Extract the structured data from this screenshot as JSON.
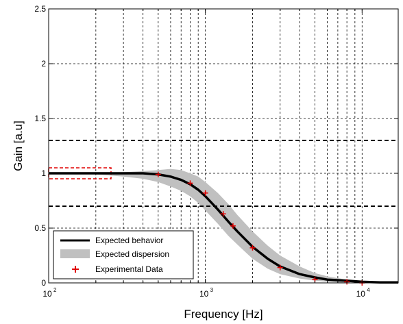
{
  "chart_data": {
    "type": "line",
    "xlabel": "Frequency [Hz]",
    "ylabel": "Gain [a.u]",
    "xscale": "log",
    "xlim": [
      100,
      17000
    ],
    "ylim": [
      0,
      2.5
    ],
    "grid": true,
    "x_ticks": [
      {
        "value": 100,
        "base": "10",
        "exp": "2"
      },
      {
        "value": 1000,
        "base": "10",
        "exp": "3"
      },
      {
        "value": 10000,
        "base": "10",
        "exp": "4"
      }
    ],
    "y_ticks": [
      {
        "value": 0,
        "label": "0"
      },
      {
        "value": 0.5,
        "label": "0.5"
      },
      {
        "value": 1,
        "label": "1"
      },
      {
        "value": 1.5,
        "label": "1.5"
      },
      {
        "value": 2,
        "label": "2"
      },
      {
        "value": 2.5,
        "label": "2.5"
      }
    ],
    "thresholds": [
      1.3,
      0.7
    ],
    "reference_box": {
      "x": [
        100,
        250
      ],
      "y": [
        0.95,
        1.05
      ]
    },
    "colors": {
      "expected_behavior": "#000000",
      "expected_dispersion": "#c0c0c0",
      "experimental_data": "#e00000",
      "reference_box": "#e00000",
      "threshold": "#000000",
      "grid": "#000000"
    },
    "legend": {
      "placement": "bottom-left",
      "entries": [
        "Expected behavior",
        "Expected dispersion",
        "Experimental Data"
      ]
    },
    "series": [
      {
        "name": "Expected behavior",
        "kind": "line",
        "x": [
          100,
          150,
          200,
          300,
          400,
          500,
          600,
          700,
          800,
          900,
          1000,
          1200,
          1400,
          1600,
          2000,
          2500,
          3000,
          4000,
          5000,
          6000,
          8000,
          10000,
          13000,
          17000
        ],
        "y": [
          1.0,
          1.0,
          1.0,
          1.0,
          1.0,
          0.99,
          0.97,
          0.94,
          0.9,
          0.85,
          0.79,
          0.67,
          0.56,
          0.47,
          0.33,
          0.22,
          0.15,
          0.08,
          0.05,
          0.03,
          0.02,
          0.01,
          0.005,
          0.005
        ]
      },
      {
        "name": "Expected dispersion",
        "kind": "band",
        "x": [
          200,
          300,
          400,
          500,
          600,
          700,
          800,
          900,
          1000,
          1200,
          1400,
          1600,
          2000,
          2500,
          3000,
          4000,
          5000,
          6000,
          8000
        ],
        "upper": [
          1.0,
          1.01,
          1.02,
          1.03,
          1.04,
          1.03,
          1.0,
          0.97,
          0.92,
          0.82,
          0.72,
          0.62,
          0.47,
          0.34,
          0.25,
          0.15,
          0.09,
          0.06,
          0.03
        ],
        "lower": [
          0.99,
          0.97,
          0.95,
          0.92,
          0.88,
          0.84,
          0.79,
          0.73,
          0.66,
          0.54,
          0.43,
          0.35,
          0.22,
          0.13,
          0.08,
          0.04,
          0.02,
          0.01,
          0.0
        ]
      },
      {
        "name": "Experimental Data",
        "kind": "scatter",
        "x": [
          500,
          800,
          1000,
          1300,
          1500,
          2000,
          3000,
          5000,
          8000,
          10000
        ],
        "y": [
          0.99,
          0.91,
          0.82,
          0.63,
          0.52,
          0.32,
          0.14,
          0.03,
          0.01,
          0.0
        ]
      }
    ]
  }
}
